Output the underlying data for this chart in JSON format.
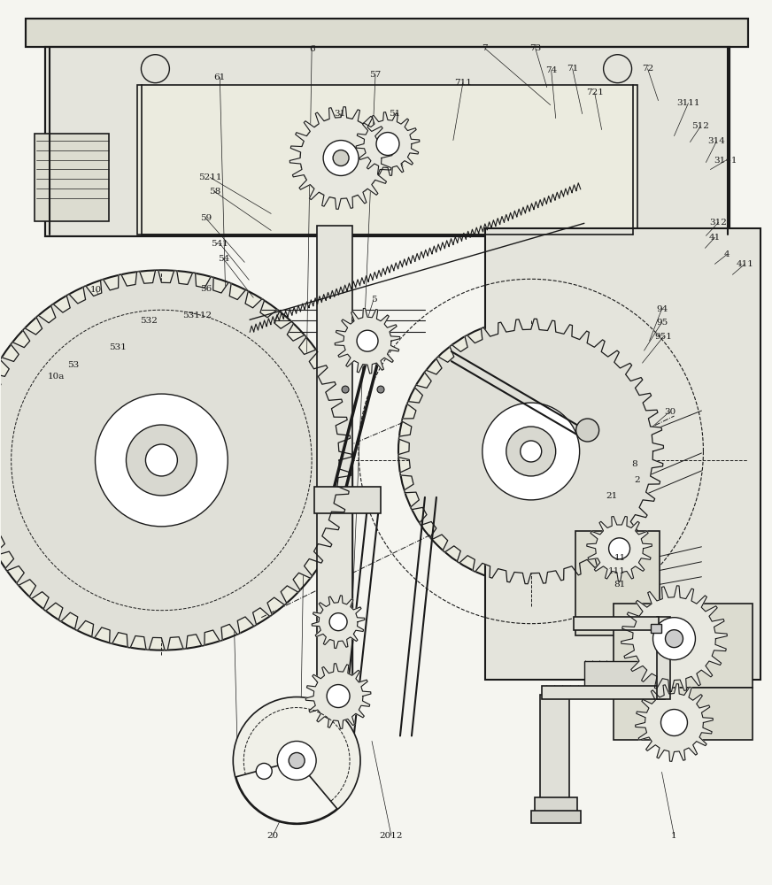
{
  "bg_color": "#f5f5f0",
  "line_color": "#1a1a1a",
  "fig_width": 8.72,
  "fig_height": 10.0,
  "font_size": 7.5
}
